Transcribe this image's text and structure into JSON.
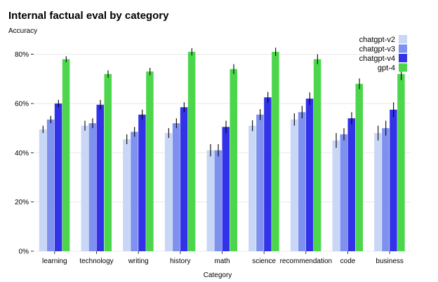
{
  "chart_data": {
    "type": "bar",
    "title": "Internal factual eval by category",
    "ylabel": "Accuracy",
    "xlabel": "Category",
    "ylim": [
      0,
      0.85
    ],
    "yticks": [
      0,
      0.2,
      0.4,
      0.6,
      0.8
    ],
    "ytick_labels": [
      "0%",
      "20%",
      "40%",
      "60%",
      "80%"
    ],
    "grid": true,
    "legend_position": "top-right",
    "categories": [
      "learning",
      "technology",
      "writing",
      "history",
      "math",
      "science",
      "recommendation",
      "code",
      "business"
    ],
    "series": [
      {
        "name": "chatgpt-v2",
        "color": "#c8d7f5",
        "values": [
          0.495,
          0.51,
          0.455,
          0.48,
          0.41,
          0.51,
          0.535,
          0.45,
          0.48
        ],
        "errors": [
          0.015,
          0.02,
          0.02,
          0.02,
          0.025,
          0.022,
          0.025,
          0.03,
          0.03
        ]
      },
      {
        "name": "chatgpt-v3",
        "color": "#7f91ee",
        "values": [
          0.535,
          0.52,
          0.485,
          0.52,
          0.41,
          0.555,
          0.565,
          0.475,
          0.5
        ],
        "errors": [
          0.015,
          0.02,
          0.02,
          0.02,
          0.025,
          0.022,
          0.025,
          0.025,
          0.03
        ]
      },
      {
        "name": "chatgpt-v4",
        "color": "#3232e8",
        "values": [
          0.6,
          0.595,
          0.555,
          0.585,
          0.505,
          0.625,
          0.62,
          0.54,
          0.575
        ],
        "errors": [
          0.015,
          0.02,
          0.02,
          0.02,
          0.025,
          0.022,
          0.025,
          0.025,
          0.03
        ]
      },
      {
        "name": "gpt-4",
        "color": "#4cd64c",
        "values": [
          0.78,
          0.72,
          0.73,
          0.81,
          0.74,
          0.81,
          0.78,
          0.68,
          0.72
        ],
        "errors": [
          0.012,
          0.015,
          0.015,
          0.015,
          0.02,
          0.017,
          0.02,
          0.022,
          0.025
        ]
      }
    ]
  }
}
